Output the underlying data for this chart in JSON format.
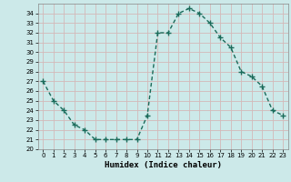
{
  "x": [
    0,
    1,
    2,
    3,
    4,
    5,
    6,
    7,
    8,
    9,
    10,
    11,
    12,
    13,
    14,
    15,
    16,
    17,
    18,
    19,
    20,
    21,
    22,
    23
  ],
  "y": [
    27.0,
    25.0,
    24.0,
    22.5,
    22.0,
    21.0,
    21.0,
    21.0,
    21.0,
    21.0,
    23.5,
    32.0,
    32.0,
    34.0,
    34.5,
    34.0,
    33.0,
    31.5,
    30.5,
    28.0,
    27.5,
    26.5,
    24.0,
    23.5
  ],
  "xlabel": "Humidex (Indice chaleur)",
  "line_color": "#1a6b5a",
  "marker": "+",
  "marker_size": 4,
  "bg_color": "#cce9e9",
  "grid_color": "#d4b8b8",
  "ylim": [
    20,
    35
  ],
  "xlim": [
    -0.5,
    23.5
  ],
  "yticks": [
    20,
    21,
    22,
    23,
    24,
    25,
    26,
    27,
    28,
    29,
    30,
    31,
    32,
    33,
    34
  ],
  "xticks": [
    0,
    1,
    2,
    3,
    4,
    5,
    6,
    7,
    8,
    9,
    10,
    11,
    12,
    13,
    14,
    15,
    16,
    17,
    18,
    19,
    20,
    21,
    22,
    23
  ],
  "tick_fontsize": 5.0,
  "xlabel_fontsize": 6.5,
  "line_width": 1.0
}
